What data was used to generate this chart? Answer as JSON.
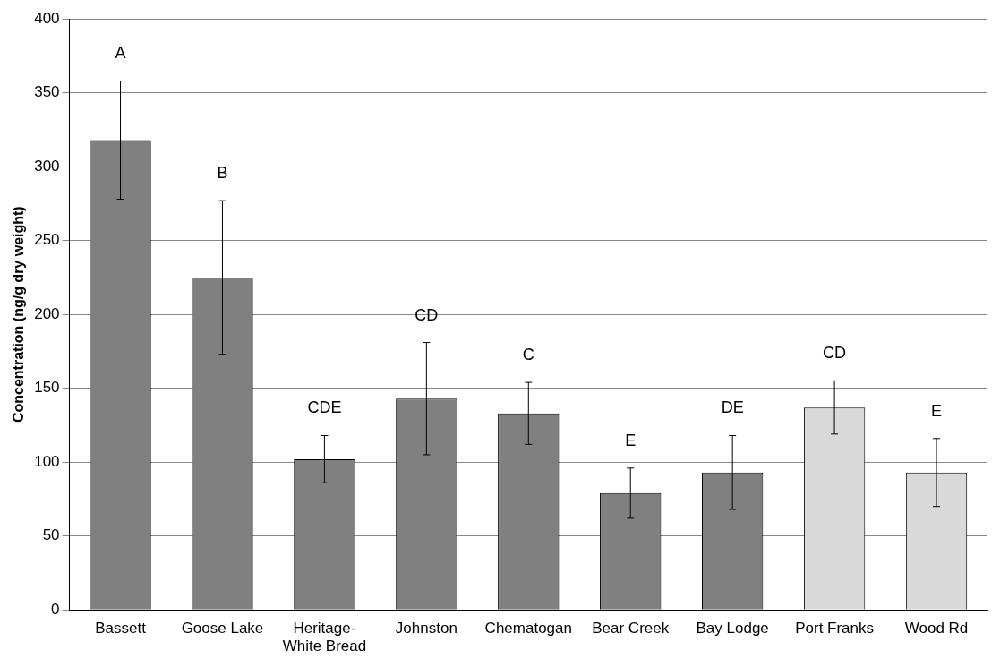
{
  "chart_data": {
    "type": "bar",
    "ylabel": "Concentration (ng/g dry weight)",
    "categories": [
      "Bassett",
      "Goose Lake",
      "Heritage-White Bread",
      "Johnston",
      "Chematogan",
      "Bear Creek",
      "Bay Lodge",
      "Port Franks",
      "Wood Rd"
    ],
    "values": [
      318,
      225,
      102,
      143,
      133,
      79,
      93,
      137,
      93
    ],
    "errors": [
      40,
      52,
      16,
      38,
      21,
      17,
      25,
      18,
      23
    ],
    "colors": [
      "#808080",
      "#808080",
      "#808080",
      "#808080",
      "#808080",
      "#808080",
      "#808080",
      "#d9d9d9",
      "#d9d9d9"
    ],
    "ylim": [
      0,
      400
    ],
    "yticks": [
      0,
      50,
      100,
      150,
      200,
      250,
      300,
      350,
      400
    ],
    "grid": "y",
    "legend": false,
    "annotations": [
      "A",
      "B",
      "CDE",
      "CD",
      "C",
      "E",
      "DE",
      "CD",
      "E"
    ]
  }
}
